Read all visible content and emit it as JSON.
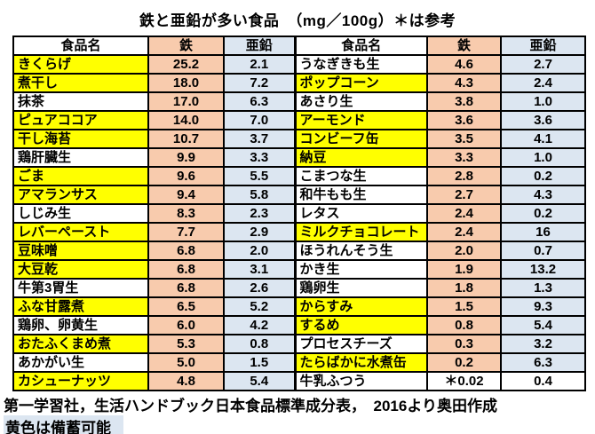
{
  "chart_data": {
    "type": "table",
    "title": "鉄と亜鉛が多い食品　（mg／100g）＊は参考",
    "columns": [
      "食品名",
      "鉄",
      "亜鉛"
    ],
    "left_rows": [
      {
        "name": "きくらげ",
        "iron": "25.2",
        "zinc": "2.1",
        "stockpile": true
      },
      {
        "name": "煮干し",
        "iron": "18.0",
        "zinc": "7.2",
        "stockpile": true
      },
      {
        "name": "抹茶",
        "iron": "17.0",
        "zinc": "6.3",
        "stockpile": false
      },
      {
        "name": "ピュアココア",
        "iron": "14.0",
        "zinc": "7.0",
        "stockpile": true
      },
      {
        "name": "干し海苔",
        "iron": "10.7",
        "zinc": "3.7",
        "stockpile": true
      },
      {
        "name": "鶏肝臓生",
        "iron": "9.9",
        "zinc": "3.3",
        "stockpile": false
      },
      {
        "name": "ごま",
        "iron": "9.6",
        "zinc": "5.5",
        "stockpile": true
      },
      {
        "name": "アマランサス",
        "iron": "9.4",
        "zinc": "5.8",
        "stockpile": true
      },
      {
        "name": "しじみ生",
        "iron": "8.3",
        "zinc": "2.3",
        "stockpile": false
      },
      {
        "name": "レバーペースト",
        "iron": "7.7",
        "zinc": "2.9",
        "stockpile": true
      },
      {
        "name": "豆味噌",
        "iron": "6.8",
        "zinc": "2.0",
        "stockpile": true
      },
      {
        "name": "大豆乾",
        "iron": "6.8",
        "zinc": "3.1",
        "stockpile": true
      },
      {
        "name": "牛第3胃生",
        "iron": "6.8",
        "zinc": "2.6",
        "stockpile": false
      },
      {
        "name": "ふな甘露煮",
        "iron": "6.5",
        "zinc": "5.2",
        "stockpile": true
      },
      {
        "name": "鶏卵、卵黄生",
        "iron": "6.0",
        "zinc": "4.2",
        "stockpile": false
      },
      {
        "name": "おたふくまめ煮",
        "iron": "5.3",
        "zinc": "0.8",
        "stockpile": true
      },
      {
        "name": "あかがい生",
        "iron": "5.0",
        "zinc": "1.5",
        "stockpile": false
      },
      {
        "name": "カシューナッツ",
        "iron": "4.8",
        "zinc": "5.4",
        "stockpile": true
      }
    ],
    "right_rows": [
      {
        "name": "うなぎきも生",
        "iron": "4.6",
        "zinc": "2.7",
        "stockpile": false
      },
      {
        "name": "ポップコーン",
        "iron": "4.3",
        "zinc": "2.4",
        "stockpile": true
      },
      {
        "name": "あさり生",
        "iron": "3.8",
        "zinc": "1.0",
        "stockpile": false
      },
      {
        "name": "アーモンド",
        "iron": "3.6",
        "zinc": "3.6",
        "stockpile": true
      },
      {
        "name": "コンビーフ缶",
        "iron": "3.5",
        "zinc": "4.1",
        "stockpile": true
      },
      {
        "name": "納豆",
        "iron": "3.3",
        "zinc": "1.0",
        "stockpile": true
      },
      {
        "name": "こまつな生",
        "iron": "2.8",
        "zinc": "0.2",
        "stockpile": false
      },
      {
        "name": "和牛もも生",
        "iron": "2.7",
        "zinc": "4.3",
        "stockpile": false
      },
      {
        "name": "レタス",
        "iron": "2.4",
        "zinc": "0.2",
        "stockpile": false
      },
      {
        "name": "ミルクチョコレート",
        "iron": "2.4",
        "zinc": "16",
        "stockpile": true
      },
      {
        "name": "ほうれんそう生",
        "iron": "2.0",
        "zinc": "0.7",
        "stockpile": false
      },
      {
        "name": "かき生",
        "iron": "1.9",
        "zinc": "13.2",
        "stockpile": false
      },
      {
        "name": "鶏卵生",
        "iron": "1.8",
        "zinc": "1.3",
        "stockpile": false
      },
      {
        "name": "からすみ",
        "iron": "1.5",
        "zinc": "9.3",
        "stockpile": true
      },
      {
        "name": "するめ",
        "iron": "0.8",
        "zinc": "5.4",
        "stockpile": true
      },
      {
        "name": "プロセスチーズ",
        "iron": "0.3",
        "zinc": "3.2",
        "stockpile": false
      },
      {
        "name": "たらばかに水煮缶",
        "iron": "0.2",
        "zinc": "6.3",
        "stockpile": true
      },
      {
        "name": "牛乳ふつう",
        "iron": "＊0.02",
        "zinc": "0.4",
        "stockpile": false,
        "plain_bg": true
      }
    ],
    "source": "第一学習社，生活ハンドブック日本食品標準成分表，　2016より奥田作成",
    "legend": "黄色は備蓄可能"
  },
  "colors": {
    "iron_column": "#F8CBAD",
    "zinc_column": "#DCE6F1",
    "stockpile_yellow": "#FFFF00",
    "note_highlight": "#DCE6F1"
  }
}
